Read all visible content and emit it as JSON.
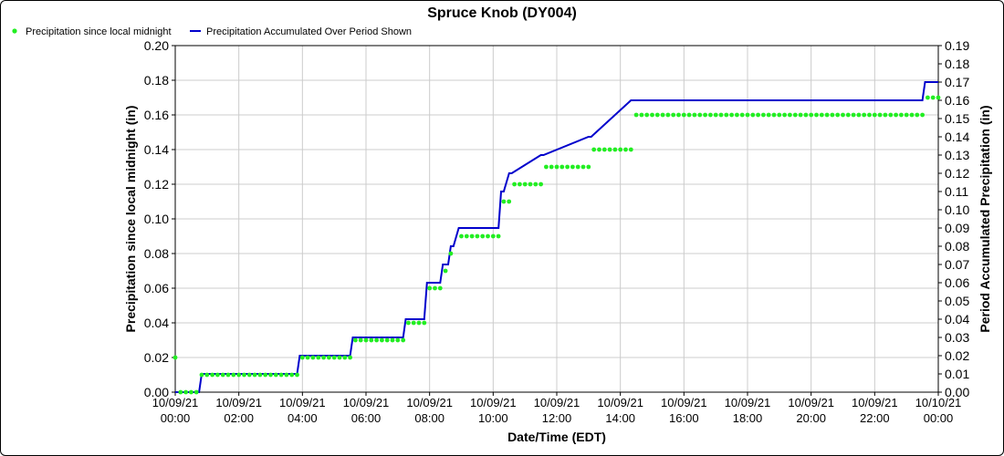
{
  "chart_data": {
    "type": "line",
    "title": "Spruce Knob (DY004)",
    "xlabel": "Date/Time (EDT)",
    "ylabel": "Precipitation since local midnight (in)",
    "y2label": "Period Accumulated Precipitation (in)",
    "xlim_hours": [
      0,
      24
    ],
    "ylim": [
      0,
      0.2
    ],
    "y2lim": [
      0,
      0.19
    ],
    "y_ticks": [
      "0.00",
      "0.02",
      "0.04",
      "0.06",
      "0.08",
      "0.10",
      "0.12",
      "0.14",
      "0.16",
      "0.18",
      "0.20"
    ],
    "y2_ticks": [
      "0.00",
      "0.01",
      "0.02",
      "0.03",
      "0.04",
      "0.05",
      "0.06",
      "0.07",
      "0.08",
      "0.09",
      "0.10",
      "0.11",
      "0.12",
      "0.13",
      "0.14",
      "0.15",
      "0.16",
      "0.17",
      "0.18",
      "0.19"
    ],
    "x_ticks": [
      {
        "hour": 0,
        "date": "10/09/21",
        "time": "00:00"
      },
      {
        "hour": 2,
        "date": "10/09/21",
        "time": "02:00"
      },
      {
        "hour": 4,
        "date": "10/09/21",
        "time": "04:00"
      },
      {
        "hour": 6,
        "date": "10/09/21",
        "time": "06:00"
      },
      {
        "hour": 8,
        "date": "10/09/21",
        "time": "08:00"
      },
      {
        "hour": 10,
        "date": "10/09/21",
        "time": "10:00"
      },
      {
        "hour": 12,
        "date": "10/09/21",
        "time": "12:00"
      },
      {
        "hour": 14,
        "date": "10/09/21",
        "time": "14:00"
      },
      {
        "hour": 16,
        "date": "10/09/21",
        "time": "16:00"
      },
      {
        "hour": 18,
        "date": "10/09/21",
        "time": "18:00"
      },
      {
        "hour": 20,
        "date": "10/09/21",
        "time": "20:00"
      },
      {
        "hour": 22,
        "date": "10/09/21",
        "time": "22:00"
      },
      {
        "hour": 24,
        "date": "10/10/21",
        "time": "00:00"
      }
    ],
    "grid": true,
    "legend_position": "top-left",
    "series": [
      {
        "name": "Precipitation since local midnight",
        "axis": "left",
        "kind": "scatter",
        "color": "#22ee22",
        "segments": [
          {
            "start": 0.0,
            "end": 0.0,
            "value": 0.02
          },
          {
            "start": 0.167,
            "end": 0.667,
            "value": 0.0
          },
          {
            "start": 0.833,
            "end": 3.833,
            "value": 0.01
          },
          {
            "start": 4.0,
            "end": 5.5,
            "value": 0.02
          },
          {
            "start": 5.667,
            "end": 7.167,
            "value": 0.03
          },
          {
            "start": 7.333,
            "end": 7.833,
            "value": 0.04
          },
          {
            "start": 8.0,
            "end": 8.333,
            "value": 0.06
          },
          {
            "start": 8.5,
            "end": 8.5,
            "value": 0.07
          },
          {
            "start": 8.667,
            "end": 8.667,
            "value": 0.08
          },
          {
            "start": 9.0,
            "end": 10.167,
            "value": 0.09
          },
          {
            "start": 10.333,
            "end": 10.5,
            "value": 0.11
          },
          {
            "start": 10.667,
            "end": 11.5,
            "value": 0.12
          },
          {
            "start": 11.667,
            "end": 13.0,
            "value": 0.13
          },
          {
            "start": 13.167,
            "end": 14.333,
            "value": 0.14
          },
          {
            "start": 14.5,
            "end": 23.5,
            "value": 0.16
          },
          {
            "start": 23.667,
            "end": 24.0,
            "value": 0.17
          }
        ]
      },
      {
        "name": "Precipitation Accumulated Over Period Shown",
        "axis": "right",
        "kind": "step-line",
        "color": "#0000cc",
        "x": [
          0.0,
          0.75,
          0.833,
          3.833,
          3.917,
          5.5,
          5.583,
          7.167,
          7.25,
          7.833,
          7.917,
          8.333,
          8.417,
          8.583,
          8.667,
          8.75,
          8.917,
          10.167,
          10.25,
          10.333,
          10.5,
          10.583,
          11.5,
          11.583,
          13.0,
          13.083,
          14.333,
          14.417,
          23.5,
          23.583,
          24.0
        ],
        "y": [
          0.0,
          0.0,
          0.01,
          0.01,
          0.02,
          0.02,
          0.03,
          0.03,
          0.04,
          0.04,
          0.06,
          0.06,
          0.07,
          0.07,
          0.08,
          0.08,
          0.09,
          0.09,
          0.11,
          0.11,
          0.12,
          0.12,
          0.13,
          0.13,
          0.14,
          0.14,
          0.16,
          0.16,
          0.16,
          0.17,
          0.17
        ]
      }
    ]
  }
}
